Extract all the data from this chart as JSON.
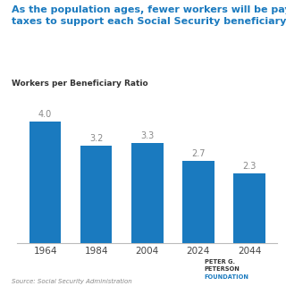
{
  "title": "As the population ages, fewer workers will be paying\ntaxes to support each Social Security beneficiary",
  "ylabel": "Workers per Beneficiary Ratio",
  "categories": [
    "1964",
    "1984",
    "2004",
    "2024",
    "2044"
  ],
  "values": [
    4.0,
    3.2,
    3.3,
    2.7,
    2.3
  ],
  "bar_color": "#1a7abf",
  "label_color": "#888888",
  "title_color": "#1a7abf",
  "subtitle_color": "#333333",
  "background_color": "#ffffff",
  "source_text": "Source: Social Security Administration",
  "ylim": [
    0,
    4.7
  ],
  "bar_width": 0.62,
  "logo_box_color": "#1a7abf",
  "logo_text_color": "#444444"
}
